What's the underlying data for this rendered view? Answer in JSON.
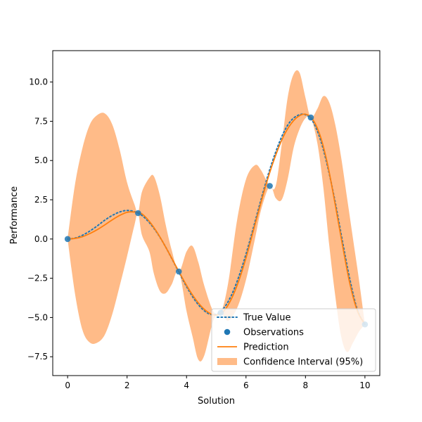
{
  "chart_data": {
    "type": "line",
    "xlabel": "Solution",
    "ylabel": "Performance",
    "xlim": [
      -0.5,
      10.5
    ],
    "ylim": [
      -8.7,
      12.0
    ],
    "xticks": [
      0,
      2,
      4,
      6,
      8,
      10
    ],
    "xtick_labels": [
      "0",
      "2",
      "4",
      "6",
      "8",
      "10"
    ],
    "yticks": [
      -7.5,
      -5.0,
      -2.5,
      0.0,
      2.5,
      5.0,
      7.5,
      10.0
    ],
    "ytick_labels": [
      "−7.5",
      "−5.0",
      "−2.5",
      "0.0",
      "2.5",
      "5.0",
      "7.5",
      "10.0"
    ],
    "grid": false,
    "legend_position": "lower-right",
    "colors": {
      "true_value": "#1f77b4",
      "observations": "#1f77b4",
      "prediction": "#ff7f0e",
      "confidence": "#ffbb88"
    },
    "observations": {
      "name": "Observations",
      "x": [
        0.0,
        2.37,
        3.74,
        5.15,
        6.8,
        8.18,
        10.0
      ],
      "y": [
        0.0,
        1.65,
        -2.07,
        -4.7,
        3.38,
        7.74,
        -5.44
      ]
    },
    "true_value": {
      "name": "True Value",
      "x": [
        0,
        0.25,
        0.5,
        0.75,
        1.0,
        1.25,
        1.5,
        1.75,
        2.0,
        2.25,
        2.5,
        2.75,
        3.0,
        3.25,
        3.5,
        3.75,
        4.0,
        4.25,
        4.5,
        4.75,
        5.0,
        5.25,
        5.5,
        5.75,
        6.0,
        6.25,
        6.5,
        6.75,
        7.0,
        7.25,
        7.5,
        7.75,
        8.0,
        8.25,
        8.5,
        8.75,
        9.0,
        9.25,
        9.5,
        9.75,
        10.0
      ],
      "y": [
        0.0,
        0.06,
        0.24,
        0.51,
        0.84,
        1.2,
        1.5,
        1.72,
        1.82,
        1.74,
        1.5,
        1.04,
        0.42,
        -0.35,
        -1.23,
        -2.14,
        -3.03,
        -3.81,
        -4.4,
        -4.76,
        -4.79,
        -4.41,
        -3.62,
        -2.44,
        -0.96,
        0.73,
        2.47,
        4.13,
        5.55,
        6.72,
        7.51,
        7.88,
        7.92,
        7.48,
        6.35,
        4.57,
        2.35,
        -0.2,
        -2.63,
        -4.54,
        -5.44
      ]
    },
    "prediction": {
      "name": "Prediction",
      "x": [
        0,
        0.25,
        0.5,
        0.75,
        1.0,
        1.25,
        1.5,
        1.75,
        2.0,
        2.25,
        2.5,
        2.75,
        3.0,
        3.25,
        3.5,
        3.75,
        4.0,
        4.25,
        4.5,
        4.75,
        5.0,
        5.25,
        5.5,
        5.75,
        6.0,
        6.25,
        6.5,
        6.75,
        7.0,
        7.25,
        7.5,
        7.75,
        8.0,
        8.25,
        8.5,
        8.75,
        9.0,
        9.25,
        9.5,
        9.75,
        10.0
      ],
      "y": [
        0.0,
        0.04,
        0.15,
        0.35,
        0.6,
        0.9,
        1.22,
        1.5,
        1.7,
        1.72,
        1.6,
        1.12,
        0.45,
        -0.35,
        -1.22,
        -2.1,
        -2.95,
        -3.7,
        -4.3,
        -4.7,
        -4.85,
        -4.6,
        -3.85,
        -2.7,
        -1.2,
        0.55,
        2.3,
        3.95,
        5.35,
        6.5,
        7.3,
        7.8,
        7.95,
        7.6,
        6.55,
        4.7,
        2.2,
        -0.45,
        -2.9,
        -4.6,
        -5.44
      ]
    },
    "confidence": {
      "name": "Confidence Interval (95%)",
      "x": [
        0,
        0.25,
        0.5,
        0.75,
        1.0,
        1.25,
        1.5,
        1.75,
        2.0,
        2.25,
        2.37,
        2.5,
        2.75,
        2.9,
        3.1,
        3.3,
        3.5,
        3.74,
        4.0,
        4.2,
        4.4,
        4.6,
        4.9,
        5.15,
        5.4,
        5.7,
        6.0,
        6.3,
        6.5,
        6.8,
        7.0,
        7.2,
        7.4,
        7.6,
        7.8,
        8.0,
        8.18,
        8.4,
        8.6,
        8.8,
        9.0,
        9.2,
        9.4,
        9.6,
        9.8,
        10.0
      ],
      "upper": [
        0.0,
        3.5,
        5.8,
        7.3,
        7.9,
        8.0,
        7.3,
        5.7,
        3.6,
        2.2,
        1.65,
        3.0,
        3.9,
        4.0,
        2.8,
        0.9,
        -0.7,
        -2.07,
        -0.8,
        -0.45,
        -1.5,
        -3.0,
        -4.6,
        -4.7,
        -2.8,
        1.2,
        3.8,
        4.7,
        4.4,
        3.38,
        3.4,
        6.0,
        9.0,
        10.5,
        10.6,
        9.0,
        7.74,
        8.3,
        9.1,
        8.7,
        7.3,
        5.2,
        2.6,
        0.0,
        -2.6,
        -5.44
      ],
      "lower": [
        0.0,
        -3.5,
        -5.8,
        -6.6,
        -6.6,
        -6.1,
        -4.8,
        -3.0,
        -1.1,
        0.9,
        1.65,
        0.25,
        -0.8,
        -2.2,
        -3.3,
        -3.45,
        -2.9,
        -2.07,
        -4.6,
        -6.2,
        -7.7,
        -7.4,
        -5.2,
        -4.7,
        -5.2,
        -4.4,
        -2.6,
        0.0,
        1.8,
        3.38,
        2.6,
        2.5,
        3.8,
        5.8,
        7.0,
        7.7,
        7.74,
        6.1,
        3.3,
        -0.4,
        -3.6,
        -6.2,
        -7.2,
        -6.6,
        -5.9,
        -5.44
      ]
    },
    "legend": [
      {
        "label": "True Value",
        "kind": "dotted-line"
      },
      {
        "label": "Observations",
        "kind": "marker"
      },
      {
        "label": "Prediction",
        "kind": "line"
      },
      {
        "label": "Confidence Interval (95%)",
        "kind": "patch"
      }
    ]
  }
}
